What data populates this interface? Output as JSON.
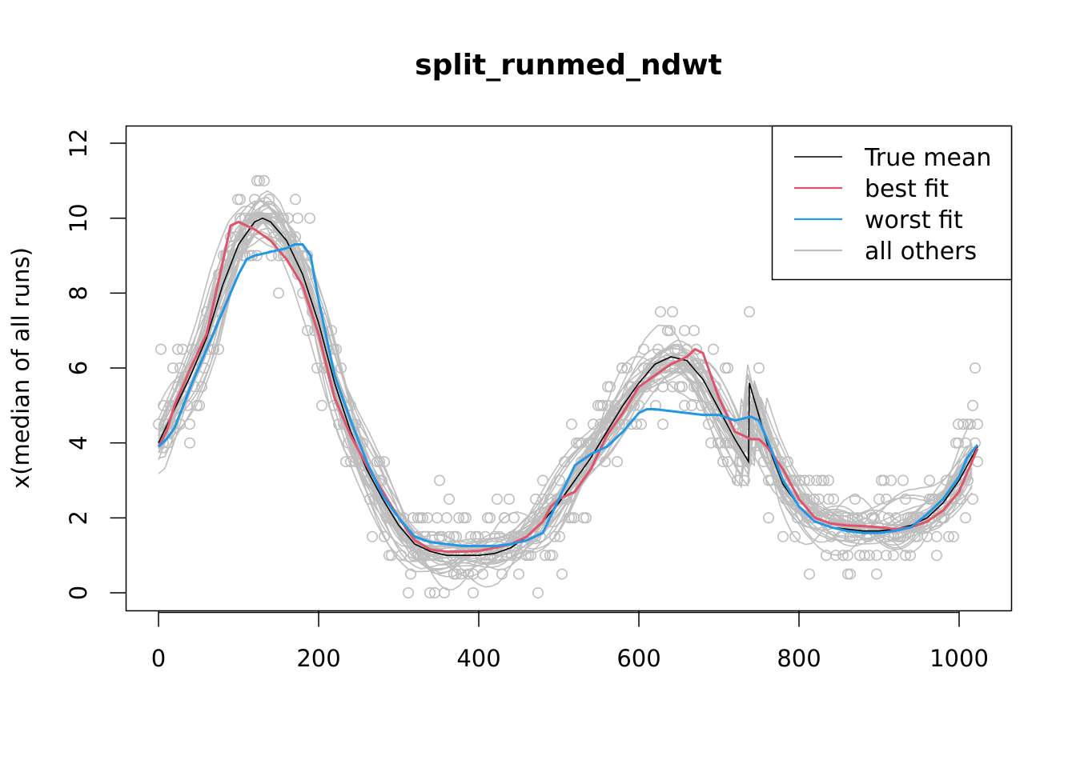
{
  "chart_data": {
    "type": "line",
    "title": "split_runmed_ndwt",
    "xlabel": "",
    "ylabel": "x(median of all runs)",
    "xlim": [
      0,
      1023
    ],
    "ylim": [
      0,
      12
    ],
    "xticks": [
      0,
      200,
      400,
      600,
      800,
      1000
    ],
    "yticks": [
      0,
      2,
      4,
      6,
      8,
      10,
      12
    ],
    "grid": false,
    "legend_position": "top-right",
    "legend": [
      {
        "label": "True mean",
        "color": "#000000"
      },
      {
        "label": "best fit",
        "color": "#DF536B"
      },
      {
        "label": "worst fit",
        "color": "#2297E6"
      },
      {
        "label": "all others",
        "color": "#BEBEBE"
      }
    ],
    "series": [
      {
        "name": "True mean",
        "color": "#000000",
        "x": [
          0,
          20,
          40,
          60,
          80,
          100,
          120,
          130,
          140,
          160,
          180,
          200,
          220,
          240,
          260,
          280,
          300,
          320,
          340,
          360,
          380,
          400,
          420,
          440,
          460,
          480,
          500,
          520,
          540,
          560,
          580,
          600,
          620,
          640,
          660,
          680,
          700,
          720,
          737,
          738,
          760,
          780,
          800,
          820,
          840,
          860,
          880,
          900,
          920,
          940,
          960,
          980,
          1000,
          1023
        ],
        "y": [
          4.0,
          4.9,
          5.8,
          6.8,
          8.2,
          9.3,
          9.9,
          10.0,
          9.9,
          9.4,
          8.5,
          7.2,
          5.6,
          4.3,
          3.3,
          2.5,
          1.8,
          1.3,
          1.1,
          1.0,
          1.0,
          1.0,
          1.05,
          1.2,
          1.5,
          1.9,
          2.4,
          3.0,
          3.6,
          4.3,
          5.0,
          5.6,
          6.1,
          6.3,
          6.2,
          5.7,
          4.9,
          4.1,
          3.5,
          5.6,
          4.0,
          2.9,
          2.3,
          1.9,
          1.75,
          1.7,
          1.65,
          1.65,
          1.7,
          1.8,
          2.0,
          2.4,
          3.0,
          3.9
        ]
      },
      {
        "name": "best fit",
        "color": "#DF536B",
        "x": [
          0,
          10,
          20,
          40,
          60,
          80,
          90,
          100,
          110,
          120,
          140,
          160,
          180,
          200,
          220,
          240,
          260,
          280,
          300,
          320,
          340,
          360,
          380,
          400,
          420,
          440,
          460,
          480,
          490,
          500,
          520,
          540,
          560,
          580,
          600,
          620,
          640,
          660,
          670,
          680,
          690,
          700,
          720,
          740,
          750,
          760,
          780,
          800,
          820,
          840,
          860,
          880,
          900,
          920,
          940,
          960,
          980,
          1000,
          1023
        ],
        "y": [
          3.9,
          4.3,
          5.0,
          6.0,
          6.9,
          8.8,
          9.8,
          9.9,
          9.8,
          9.7,
          9.4,
          8.9,
          8.2,
          6.9,
          5.2,
          4.2,
          3.4,
          2.7,
          2.0,
          1.4,
          1.15,
          1.1,
          1.1,
          1.12,
          1.2,
          1.3,
          1.5,
          1.9,
          2.3,
          2.5,
          2.7,
          3.3,
          4.2,
          4.8,
          5.5,
          5.8,
          6.1,
          6.3,
          6.5,
          6.4,
          5.8,
          5.2,
          4.3,
          4.1,
          4.1,
          3.9,
          3.3,
          2.5,
          2.0,
          1.85,
          1.8,
          1.78,
          1.75,
          1.7,
          1.75,
          1.9,
          2.2,
          2.7,
          3.85
        ]
      },
      {
        "name": "worst fit",
        "color": "#2297E6",
        "x": [
          0,
          10,
          20,
          40,
          60,
          80,
          100,
          110,
          120,
          140,
          160,
          170,
          180,
          190,
          200,
          220,
          240,
          260,
          280,
          300,
          320,
          340,
          360,
          380,
          400,
          420,
          440,
          460,
          480,
          500,
          520,
          540,
          560,
          580,
          600,
          610,
          620,
          640,
          660,
          680,
          700,
          720,
          740,
          750,
          760,
          780,
          800,
          820,
          840,
          860,
          880,
          900,
          920,
          940,
          960,
          980,
          1000,
          1010,
          1023
        ],
        "y": [
          3.9,
          4.1,
          4.4,
          5.5,
          6.5,
          7.5,
          8.5,
          8.9,
          9.0,
          9.1,
          9.2,
          9.3,
          9.3,
          9.0,
          7.8,
          5.8,
          4.6,
          3.5,
          2.6,
          2.0,
          1.5,
          1.35,
          1.3,
          1.25,
          1.25,
          1.25,
          1.3,
          1.4,
          1.6,
          2.5,
          3.4,
          3.7,
          3.9,
          4.3,
          4.8,
          4.9,
          4.9,
          4.85,
          4.8,
          4.75,
          4.75,
          4.6,
          4.7,
          4.6,
          4.1,
          3.0,
          2.3,
          1.9,
          1.75,
          1.65,
          1.6,
          1.6,
          1.65,
          1.75,
          2.1,
          2.5,
          3.1,
          3.6,
          3.95
        ]
      }
    ]
  }
}
